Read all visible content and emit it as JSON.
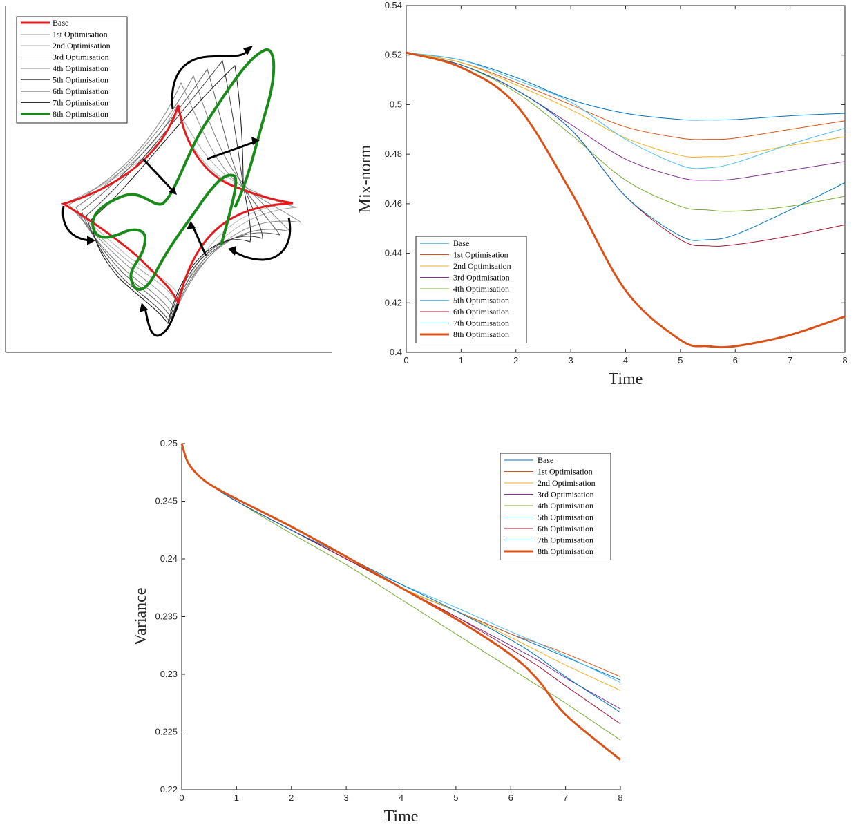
{
  "colors": {
    "base": "#0072BD",
    "opt1": "#D95319",
    "opt2": "#EDB120",
    "opt3": "#7E2F8E",
    "opt4": "#77AC30",
    "opt5": "#4DBEEE",
    "opt6": "#A2142F",
    "opt7": "#0072BD",
    "opt8": "#D95319",
    "shape_base": "#e41a1c",
    "shape_final": "#1a8a1a"
  },
  "shape_legend": [
    "Base",
    "1st Optimisation",
    "2nd Optimisation",
    "3rd Optimisation",
    "4th Optimisation",
    "5th Optimisation",
    "6th Optimisation",
    "7th Optimisation",
    "8th Optimisation"
  ],
  "chart_data": [
    {
      "type": "line",
      "xlabel": "Time",
      "ylabel": "Mix-norm",
      "xlim": [
        0,
        8
      ],
      "ylim": [
        0.4,
        0.54
      ],
      "xticks": [
        "0",
        "1",
        "2",
        "3",
        "4",
        "5",
        "6",
        "7",
        "8"
      ],
      "yticks": [
        "0.4",
        "0.42",
        "0.44",
        "0.46",
        "0.48",
        "0.5",
        "0.52",
        "0.54"
      ],
      "legend_position": "bottom-left",
      "x": [
        0,
        1,
        2,
        3,
        4,
        5,
        5.5,
        6,
        7,
        8
      ],
      "series": [
        {
          "name": "Base",
          "values": [
            0.521,
            0.518,
            0.511,
            0.502,
            0.4965,
            0.494,
            0.4938,
            0.494,
            0.4955,
            0.4965
          ]
        },
        {
          "name": "1st Optimisation",
          "values": [
            0.521,
            0.517,
            0.509,
            0.5,
            0.491,
            0.4865,
            0.486,
            0.4865,
            0.49,
            0.4935
          ]
        },
        {
          "name": "2nd Optimisation",
          "values": [
            0.521,
            0.517,
            0.508,
            0.498,
            0.4865,
            0.4795,
            0.479,
            0.4795,
            0.4835,
            0.487
          ]
        },
        {
          "name": "3rd Optimisation",
          "values": [
            0.521,
            0.516,
            0.506,
            0.492,
            0.478,
            0.4705,
            0.4695,
            0.47,
            0.4735,
            0.477
          ]
        },
        {
          "name": "4th Optimisation",
          "values": [
            0.521,
            0.516,
            0.505,
            0.488,
            0.4695,
            0.459,
            0.4575,
            0.457,
            0.459,
            0.463
          ]
        },
        {
          "name": "5th Optimisation",
          "values": [
            0.521,
            0.518,
            0.51,
            0.501,
            0.486,
            0.4755,
            0.4745,
            0.4765,
            0.484,
            0.4905
          ]
        },
        {
          "name": "6th Optimisation",
          "values": [
            0.521,
            0.516,
            0.506,
            0.49,
            0.463,
            0.4455,
            0.443,
            0.4435,
            0.447,
            0.4515
          ]
        },
        {
          "name": "7th Optimisation",
          "values": [
            0.521,
            0.516,
            0.506,
            0.49,
            0.463,
            0.447,
            0.4455,
            0.4475,
            0.4575,
            0.4685
          ]
        },
        {
          "name": "8th Optimisation",
          "values": [
            0.521,
            0.515,
            0.5,
            0.465,
            0.425,
            0.405,
            0.4025,
            0.4025,
            0.407,
            0.4145
          ]
        }
      ]
    },
    {
      "type": "line",
      "xlabel": "Time",
      "ylabel": "Variance",
      "xlim": [
        0,
        8
      ],
      "ylim": [
        0.22,
        0.25
      ],
      "xticks": [
        "0",
        "1",
        "2",
        "3",
        "4",
        "5",
        "6",
        "7",
        "8"
      ],
      "yticks": [
        "0.22",
        "0.225",
        "0.23",
        "0.235",
        "0.24",
        "0.245",
        "0.25"
      ],
      "legend_position": "top-right",
      "x": [
        0,
        0.1,
        0.25,
        0.5,
        1,
        2,
        3,
        4,
        5,
        6,
        6.5,
        7,
        8
      ],
      "series": [
        {
          "name": "Base",
          "values": [
            0.25,
            0.2485,
            0.2475,
            0.2465,
            0.245,
            0.2425,
            0.24,
            0.2375,
            0.2355,
            0.2335,
            0.2325,
            0.2315,
            0.2295
          ]
        },
        {
          "name": "1st Optimisation",
          "values": [
            0.25,
            0.2485,
            0.2475,
            0.2465,
            0.245,
            0.2425,
            0.24,
            0.2375,
            0.2355,
            0.2335,
            0.2327,
            0.2318,
            0.2298
          ]
        },
        {
          "name": "2nd Optimisation",
          "values": [
            0.25,
            0.2485,
            0.2475,
            0.2465,
            0.245,
            0.2425,
            0.24,
            0.2375,
            0.2355,
            0.2332,
            0.232,
            0.2308,
            0.2286
          ]
        },
        {
          "name": "3rd Optimisation",
          "values": [
            0.25,
            0.2485,
            0.2475,
            0.2465,
            0.245,
            0.2425,
            0.24,
            0.2375,
            0.235,
            0.2325,
            0.2312,
            0.2297,
            0.227
          ]
        },
        {
          "name": "4th Optimisation",
          "values": [
            0.25,
            0.2485,
            0.2475,
            0.2465,
            0.245,
            0.2422,
            0.2395,
            0.2365,
            0.2335,
            0.2305,
            0.229,
            0.2275,
            0.2243
          ]
        },
        {
          "name": "5th Optimisation",
          "values": [
            0.25,
            0.2485,
            0.2475,
            0.2465,
            0.245,
            0.2425,
            0.24,
            0.2378,
            0.2358,
            0.2337,
            0.2327,
            0.2316,
            0.2293
          ]
        },
        {
          "name": "6th Optimisation",
          "values": [
            0.25,
            0.2485,
            0.2475,
            0.2465,
            0.245,
            0.2425,
            0.24,
            0.2375,
            0.235,
            0.2322,
            0.2307,
            0.229,
            0.2257
          ]
        },
        {
          "name": "7th Optimisation",
          "values": [
            0.25,
            0.2485,
            0.2475,
            0.2465,
            0.245,
            0.2425,
            0.2402,
            0.2378,
            0.2355,
            0.233,
            0.2315,
            0.2298,
            0.2267
          ]
        },
        {
          "name": "8th Optimisation",
          "values": [
            0.25,
            0.2485,
            0.2475,
            0.2465,
            0.2452,
            0.2428,
            0.2402,
            0.2375,
            0.2348,
            0.2317,
            0.2295,
            0.2265,
            0.2226
          ]
        }
      ]
    }
  ]
}
